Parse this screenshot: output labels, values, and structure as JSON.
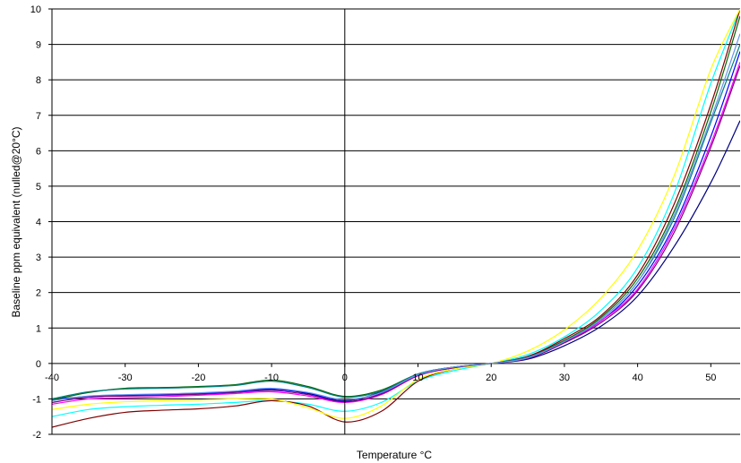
{
  "chart_data": {
    "type": "line",
    "title": "",
    "xlabel": "Temperature °C",
    "ylabel": "Baseline ppm equivalent (nulled@20°C)",
    "xlim": [
      -40,
      54
    ],
    "ylim": [
      -2,
      10
    ],
    "xticks": [
      "-40",
      "-30",
      "-20",
      "-10",
      "0",
      "10",
      "20",
      "30",
      "40",
      "50"
    ],
    "yticks": [
      "-2",
      "-1",
      "0",
      "1",
      "2",
      "3",
      "4",
      "5",
      "6",
      "7",
      "8",
      "9",
      "10"
    ],
    "grid": "horizontal",
    "series": [
      {
        "color": "#000080",
        "x": [
          -40,
          -35,
          -30,
          -25,
          -20,
          -15,
          -10,
          -5,
          0,
          5,
          10,
          15,
          20,
          25,
          30,
          35,
          40,
          45,
          50,
          54
        ],
        "y": [
          -1.0,
          -0.95,
          -0.9,
          -0.88,
          -0.85,
          -0.8,
          -0.72,
          -0.85,
          -1.05,
          -0.8,
          -0.3,
          -0.1,
          0,
          0.12,
          0.5,
          1.05,
          1.9,
          3.3,
          5.1,
          6.85
        ]
      },
      {
        "color": "#0000ff",
        "x": [
          -40,
          -35,
          -30,
          -25,
          -20,
          -15,
          -10,
          -5,
          0,
          5,
          10,
          15,
          20,
          25,
          30,
          35,
          40,
          45,
          50,
          54
        ],
        "y": [
          -1.02,
          -0.93,
          -0.9,
          -0.88,
          -0.85,
          -0.8,
          -0.73,
          -0.83,
          -1.08,
          -0.85,
          -0.33,
          -0.12,
          0,
          0.15,
          0.6,
          1.2,
          2.2,
          3.9,
          6.4,
          8.8
        ]
      },
      {
        "color": "#006400",
        "x": [
          -40,
          -35,
          -30,
          -25,
          -20,
          -15,
          -10,
          -5,
          0,
          5,
          10,
          15,
          20,
          25,
          30,
          35,
          40,
          45,
          50,
          54
        ],
        "y": [
          -1.03,
          -0.82,
          -0.7,
          -0.68,
          -0.65,
          -0.6,
          -0.47,
          -0.65,
          -0.93,
          -0.75,
          -0.3,
          -0.1,
          0,
          0.2,
          0.65,
          1.3,
          2.4,
          4.3,
          7.1,
          9.8
        ]
      },
      {
        "color": "#ff00ff",
        "x": [
          -40,
          -35,
          -30,
          -25,
          -20,
          -15,
          -10,
          -5,
          0,
          5,
          10,
          15,
          20,
          25,
          30,
          35,
          40,
          45,
          50,
          54
        ],
        "y": [
          -1.15,
          -1.0,
          -0.97,
          -0.94,
          -0.9,
          -0.85,
          -0.8,
          -0.92,
          -1.1,
          -0.88,
          -0.35,
          -0.12,
          0,
          0.15,
          0.6,
          1.2,
          2.1,
          3.8,
          6.2,
          8.5
        ]
      },
      {
        "color": "#00ffff",
        "x": [
          -40,
          -35,
          -30,
          -25,
          -20,
          -15,
          -10,
          -5,
          0,
          5,
          10,
          15,
          20,
          25,
          30,
          35,
          40,
          45,
          50,
          54
        ],
        "y": [
          -1.5,
          -1.3,
          -1.22,
          -1.18,
          -1.15,
          -1.1,
          -1.05,
          -1.15,
          -1.35,
          -1.1,
          -0.5,
          -0.2,
          0,
          0.25,
          0.75,
          1.5,
          2.7,
          4.8,
          7.9,
          10.0
        ]
      },
      {
        "color": "#800000",
        "x": [
          -40,
          -35,
          -30,
          -25,
          -20,
          -15,
          -10,
          -5,
          0,
          5,
          10,
          15,
          20,
          25,
          30,
          35,
          40,
          45,
          50,
          54
        ],
        "y": [
          -1.8,
          -1.55,
          -1.38,
          -1.32,
          -1.28,
          -1.2,
          -1.05,
          -1.2,
          -1.65,
          -1.35,
          -0.5,
          -0.15,
          0,
          0.2,
          0.7,
          1.35,
          2.5,
          4.5,
          7.3,
          10.0
        ]
      },
      {
        "color": "#ffff00",
        "x": [
          -40,
          -35,
          -30,
          -25,
          -20,
          -15,
          -10,
          -5,
          0,
          5,
          10,
          15,
          20,
          25,
          30,
          35,
          40,
          45,
          50,
          54
        ],
        "y": [
          -1.3,
          -1.15,
          -1.08,
          -1.05,
          -1.03,
          -1.0,
          -1.0,
          -1.25,
          -1.55,
          -1.2,
          -0.45,
          -0.15,
          0,
          0.35,
          0.95,
          1.85,
          3.2,
          5.3,
          8.3,
          10.0
        ]
      },
      {
        "color": "#008080",
        "x": [
          -40,
          -35,
          -30,
          -25,
          -20,
          -15,
          -10,
          -5,
          0,
          5,
          10,
          15,
          20,
          25,
          30,
          35,
          40,
          45,
          50,
          54
        ],
        "y": [
          -1.0,
          -0.8,
          -0.72,
          -0.7,
          -0.67,
          -0.62,
          -0.5,
          -0.68,
          -0.95,
          -0.78,
          -0.3,
          -0.1,
          0,
          0.18,
          0.62,
          1.25,
          2.3,
          4.1,
          6.8,
          9.0
        ]
      },
      {
        "color": "#800080",
        "x": [
          -40,
          -35,
          -30,
          -25,
          -20,
          -15,
          -10,
          -5,
          0,
          5,
          10,
          15,
          20,
          25,
          30,
          35,
          40,
          45,
          50,
          54
        ],
        "y": [
          -1.1,
          -0.95,
          -0.92,
          -0.9,
          -0.87,
          -0.82,
          -0.76,
          -0.88,
          -1.08,
          -0.86,
          -0.34,
          -0.12,
          0,
          0.14,
          0.58,
          1.15,
          2.05,
          3.7,
          6.1,
          8.4
        ]
      },
      {
        "color": "#6495ed",
        "x": [
          -40,
          -35,
          -30,
          -25,
          -20,
          -15,
          -10,
          -5,
          0,
          5,
          10,
          15,
          20,
          25,
          30,
          35,
          40,
          45,
          50,
          54
        ],
        "y": [
          -1.05,
          -0.92,
          -0.88,
          -0.86,
          -0.83,
          -0.78,
          -0.7,
          -0.82,
          -1.02,
          -0.82,
          -0.32,
          -0.1,
          0,
          0.16,
          0.62,
          1.25,
          2.3,
          4.2,
          6.9,
          9.3
        ]
      }
    ]
  }
}
